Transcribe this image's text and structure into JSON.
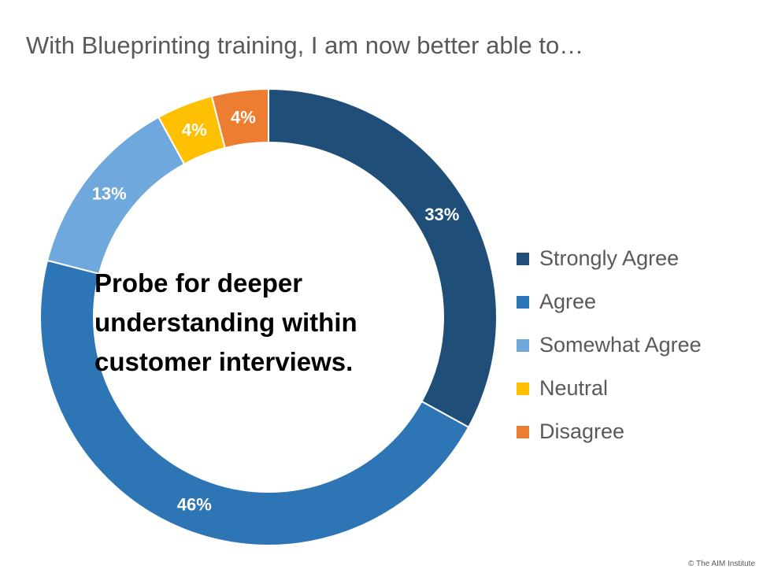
{
  "title": "With Blueprinting training, I am now better able to…",
  "center_text": {
    "line1": "Probe for deeper",
    "line2": "understanding within",
    "line3": "customer interviews."
  },
  "copyright": "© The AIM Institute",
  "chart_data": {
    "type": "pie",
    "variant": "doughnut",
    "title": "With Blueprinting training, I am now better able to…",
    "categories": [
      "Strongly Agree",
      "Agree",
      "Somewhat Agree",
      "Neutral",
      "Disagree"
    ],
    "values": [
      33,
      46,
      13,
      4,
      4
    ],
    "labels": [
      "33%",
      "46%",
      "13%",
      "4%",
      "4%"
    ],
    "colors": [
      "#1f4e79",
      "#2e75b6",
      "#6fa8dc",
      "#ffc000",
      "#ed7d31"
    ],
    "legend_position": "right",
    "start": "top",
    "direction": "clockwise"
  }
}
